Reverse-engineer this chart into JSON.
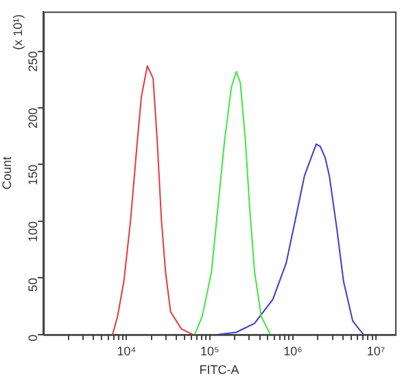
{
  "chart_data": {
    "type": "line",
    "xlabel": "FITC-A",
    "ylabel": "Count",
    "annotations": [
      "(x 10¹)"
    ],
    "log": "x",
    "grid": false,
    "legend": false,
    "marker": "none",
    "line_style": "solid",
    "xlim": [
      1000,
      17000000
    ],
    "ylim": [
      0,
      285
    ],
    "xticks": [
      {
        "value": 2000,
        "label": null
      },
      {
        "value": 3000,
        "label": null
      },
      {
        "value": 4000,
        "label": null
      },
      {
        "value": 5000,
        "label": null
      },
      {
        "value": 6000,
        "label": null
      },
      {
        "value": 7000,
        "label": null
      },
      {
        "value": 8000,
        "label": null
      },
      {
        "value": 9000,
        "label": null
      },
      {
        "value": 10000,
        "label": "10⁴"
      },
      {
        "value": 20000,
        "label": null
      },
      {
        "value": 30000,
        "label": null
      },
      {
        "value": 40000,
        "label": null
      },
      {
        "value": 50000,
        "label": null
      },
      {
        "value": 60000,
        "label": null
      },
      {
        "value": 70000,
        "label": null
      },
      {
        "value": 80000,
        "label": null
      },
      {
        "value": 90000,
        "label": null
      },
      {
        "value": 100000,
        "label": "10⁵"
      },
      {
        "value": 200000,
        "label": null
      },
      {
        "value": 300000,
        "label": null
      },
      {
        "value": 400000,
        "label": null
      },
      {
        "value": 500000,
        "label": null
      },
      {
        "value": 600000,
        "label": null
      },
      {
        "value": 700000,
        "label": null
      },
      {
        "value": 800000,
        "label": null
      },
      {
        "value": 900000,
        "label": null
      },
      {
        "value": 1000000,
        "label": "10⁶"
      },
      {
        "value": 2000000,
        "label": null
      },
      {
        "value": 3000000,
        "label": null
      },
      {
        "value": 4000000,
        "label": null
      },
      {
        "value": 5000000,
        "label": null
      },
      {
        "value": 6000000,
        "label": null
      },
      {
        "value": 7000000,
        "label": null
      },
      {
        "value": 8000000,
        "label": null
      },
      {
        "value": 9000000,
        "label": null
      },
      {
        "value": 10000000,
        "label": "10⁷"
      }
    ],
    "yticks": [
      0,
      50,
      100,
      150,
      200,
      250
    ],
    "series": [
      {
        "color": "#e8383d",
        "x": [
          6800,
          7800,
          9300,
          11200,
          13500,
          15100,
          17800,
          20900,
          23400,
          26300,
          29500,
          33900,
          45700,
          63100
        ],
        "values": [
          0,
          16,
          47,
          101,
          171,
          210,
          237,
          226,
          171,
          101,
          55,
          20,
          5,
          0
        ]
      },
      {
        "color": "#3ee83a",
        "x": [
          66100,
          81300,
          105000,
          126000,
          151000,
          182000,
          209000,
          234000,
          269000,
          302000,
          347000,
          417000,
          537000
        ],
        "values": [
          0,
          16,
          55,
          113,
          171,
          218,
          232,
          222,
          171,
          113,
          55,
          16,
          0
        ]
      },
      {
        "color": "#3b3bd0",
        "x": [
          126000,
          209000,
          347000,
          575000,
          832000,
          1070000,
          1380000,
          1660000,
          1910000,
          2140000,
          2450000,
          2750000,
          3390000,
          4070000,
          5250000,
          7080000
        ],
        "values": [
          0,
          2,
          10,
          31,
          63,
          101,
          140,
          156,
          168,
          166,
          156,
          140,
          93,
          47,
          12,
          0
        ]
      }
    ]
  }
}
